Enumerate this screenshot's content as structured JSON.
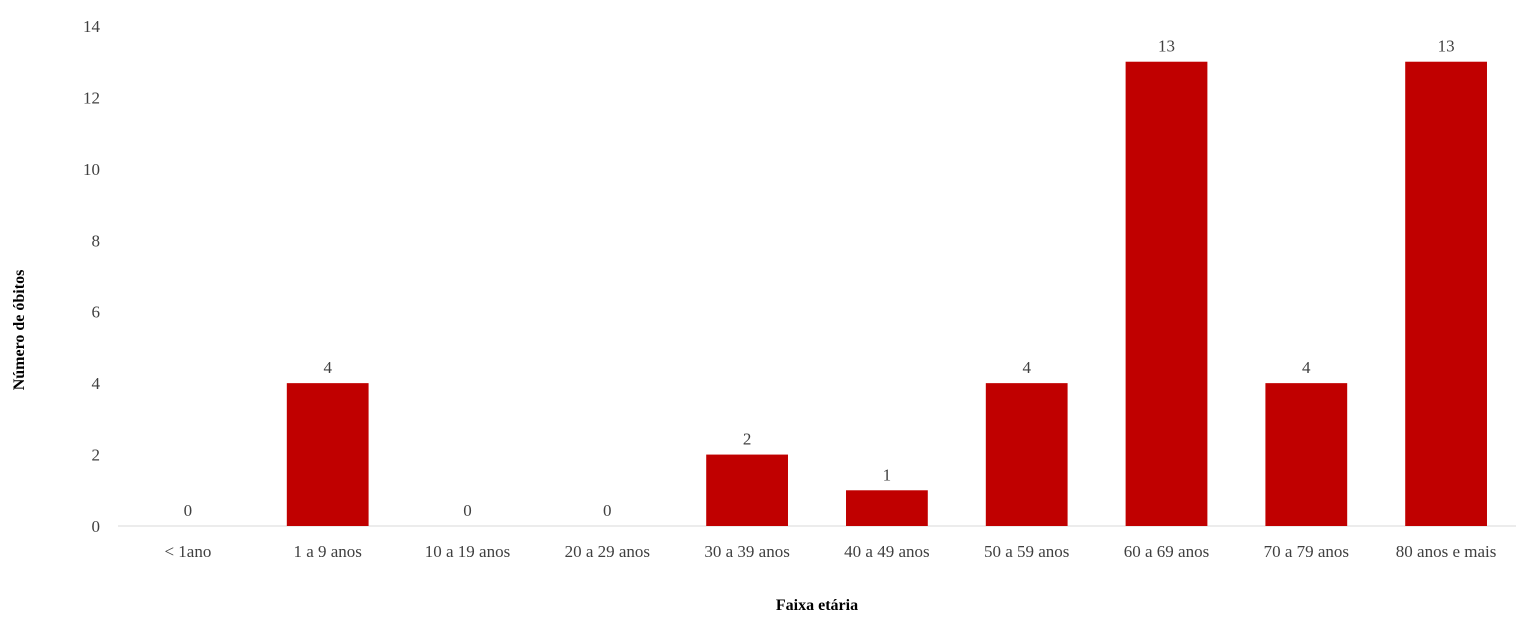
{
  "chart_data": {
    "type": "bar",
    "title": "",
    "xlabel": "Faixa etária",
    "ylabel": "Número de óbitos",
    "categories": [
      "< 1ano",
      "1 a 9 anos",
      "10 a 19 anos",
      "20 a 29 anos",
      "30 a 39 anos",
      "40 a 49 anos",
      "50 a 59 anos",
      "60 a 69 anos",
      "70 a 79 anos",
      "80 anos e mais"
    ],
    "values": [
      0,
      4,
      0,
      0,
      2,
      1,
      4,
      13,
      4,
      13
    ],
    "ylim": [
      0,
      14
    ],
    "yticks": [
      "0",
      "2",
      "4",
      "6",
      "8",
      "10",
      "12",
      "14"
    ],
    "data_labels": [
      "0",
      "4",
      "0",
      "0",
      "2",
      "1",
      "4",
      "13",
      "4",
      "13"
    ],
    "grid": false,
    "legend": "none",
    "bar_color": "#C00000"
  }
}
